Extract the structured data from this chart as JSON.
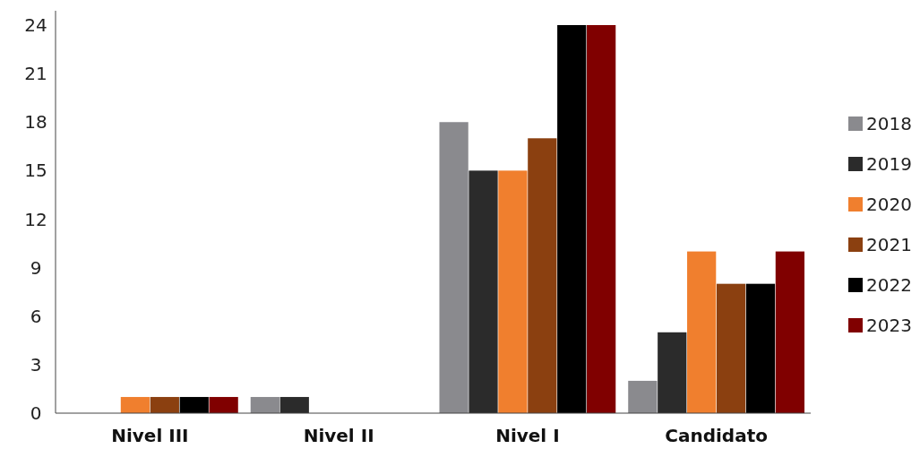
{
  "chart_data": {
    "type": "bar",
    "categories": [
      "Nivel III",
      "Nivel II",
      "Nivel I",
      "Candidato"
    ],
    "series": [
      {
        "name": "2018",
        "color": "#8a8a8e",
        "values": [
          0,
          1,
          18,
          2
        ]
      },
      {
        "name": "2019",
        "color": "#2b2b2b",
        "values": [
          0,
          1,
          15,
          5
        ]
      },
      {
        "name": "2020",
        "color": "#f07f2e",
        "values": [
          1,
          0,
          15,
          10
        ]
      },
      {
        "name": "2021",
        "color": "#8b4010",
        "values": [
          1,
          0,
          17,
          8
        ]
      },
      {
        "name": "2022",
        "color": "#000000",
        "values": [
          1,
          0,
          24,
          8
        ]
      },
      {
        "name": "2023",
        "color": "#800000",
        "values": [
          1,
          0,
          24,
          10
        ]
      }
    ],
    "ylim": [
      0,
      24
    ],
    "yticks": [
      0,
      3,
      6,
      9,
      12,
      15,
      18,
      21,
      24
    ],
    "grid": false,
    "legend": "right"
  }
}
